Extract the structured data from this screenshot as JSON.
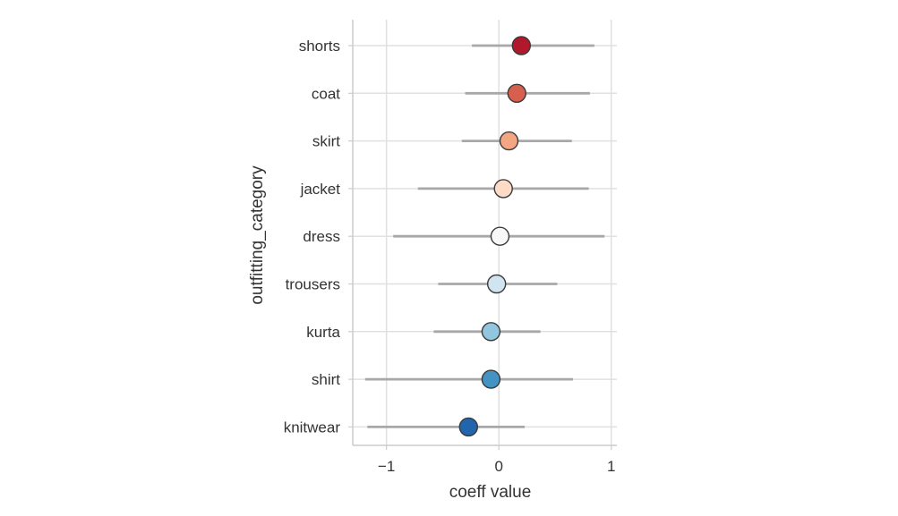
{
  "chart_data": {
    "type": "scatter",
    "title": "",
    "xlabel": "coeff value",
    "ylabel": "outfitting_category",
    "xlim": [
      -1.3,
      1.05
    ],
    "xticks": [
      -1,
      0,
      1
    ],
    "xtick_labels": [
      "−1",
      "0",
      "1"
    ],
    "grid": true,
    "categories": [
      "shorts",
      "coat",
      "skirt",
      "jacket",
      "dress",
      "trousers",
      "kurta",
      "shirt",
      "knitwear"
    ],
    "values": [
      0.2,
      0.16,
      0.09,
      0.04,
      0.01,
      -0.02,
      -0.07,
      -0.07,
      -0.27
    ],
    "ci_low": [
      -0.24,
      -0.3,
      -0.33,
      -0.72,
      -0.94,
      -0.54,
      -0.58,
      -1.19,
      -1.17
    ],
    "ci_high": [
      0.85,
      0.81,
      0.65,
      0.8,
      0.94,
      0.52,
      0.37,
      0.66,
      0.23
    ],
    "colors": [
      "#b2182b",
      "#d6604d",
      "#f4a582",
      "#fddbc7",
      "#f7f7f7",
      "#d1e5f0",
      "#92c5de",
      "#4393c3",
      "#2166ac"
    ]
  }
}
